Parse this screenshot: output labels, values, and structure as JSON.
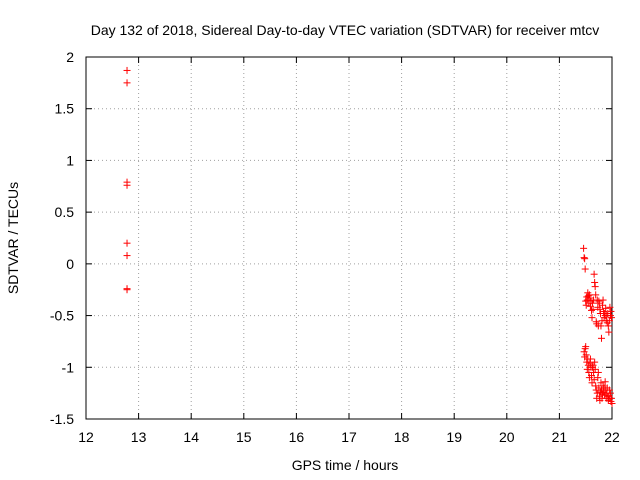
{
  "chart_data": {
    "type": "scatter",
    "title": "Day 132 of 2018, Sidereal Day-to-day VTEC variation (SDTVAR) for receiver mtcv",
    "xlabel": "GPS time / hours",
    "ylabel": "SDTVAR / TECUs",
    "xlim": [
      12,
      22
    ],
    "ylim": [
      -1.5,
      2
    ],
    "xticks": [
      "12",
      "13",
      "14",
      "15",
      "16",
      "17",
      "18",
      "19",
      "20",
      "21",
      "22"
    ],
    "yticks": [
      "-1.5",
      "-1",
      "-0.5",
      "0",
      "0.5",
      "1",
      "1.5",
      "2"
    ],
    "grid": true,
    "marker": "+",
    "color": "#ff0000",
    "series": [
      {
        "x": [
          12.78,
          12.78,
          12.78,
          12.78,
          12.78,
          12.78,
          12.78,
          12.78,
          21.46,
          21.47,
          21.48,
          21.49,
          21.5,
          21.51,
          21.52,
          21.53,
          21.54,
          21.55,
          21.56,
          21.57,
          21.58,
          21.59,
          21.6,
          21.61,
          21.62,
          21.63,
          21.64,
          21.65,
          21.66,
          21.67,
          21.68,
          21.69,
          21.7,
          21.71,
          21.72,
          21.73,
          21.74,
          21.75,
          21.76,
          21.77,
          21.78,
          21.79,
          21.8,
          21.81,
          21.82,
          21.83,
          21.84,
          21.85,
          21.86,
          21.87,
          21.88,
          21.89,
          21.9,
          21.91,
          21.92,
          21.93,
          21.94,
          21.95,
          21.96,
          21.97,
          21.98,
          21.99,
          21.47,
          21.48,
          21.49,
          21.5,
          21.51,
          21.52,
          21.53,
          21.54,
          21.55,
          21.56,
          21.57,
          21.58,
          21.59,
          21.6,
          21.61,
          21.62,
          21.63,
          21.64,
          21.65,
          21.66,
          21.67,
          21.68,
          21.69,
          21.7,
          21.71,
          21.72,
          21.73,
          21.74,
          21.75,
          21.76,
          21.77,
          21.78,
          21.79,
          21.8,
          21.81,
          21.82,
          21.83,
          21.84,
          21.85,
          21.86,
          21.87,
          21.88,
          21.89,
          21.9,
          21.91,
          21.92,
          21.93,
          21.94,
          21.95,
          21.96,
          21.97,
          21.98,
          21.99,
          22.0
        ],
        "y": [
          1.87,
          1.75,
          0.79,
          0.76,
          0.2,
          0.08,
          -0.24,
          -0.25,
          0.15,
          0.06,
          0.05,
          -0.05,
          -0.36,
          -0.4,
          -0.32,
          -0.35,
          -0.28,
          -0.31,
          -0.38,
          -0.3,
          -0.33,
          -0.41,
          -0.36,
          -0.45,
          -0.52,
          -0.38,
          -0.44,
          -0.35,
          -0.1,
          -0.18,
          -0.22,
          -0.3,
          -0.56,
          -0.58,
          -0.35,
          -0.42,
          -0.6,
          -0.36,
          -0.38,
          -0.44,
          -0.48,
          -0.6,
          -0.72,
          -0.55,
          -0.4,
          -0.35,
          -0.46,
          -0.52,
          -0.48,
          -0.5,
          -0.43,
          -0.55,
          -0.5,
          -0.57,
          -0.48,
          -0.6,
          -0.66,
          -0.55,
          -0.42,
          -0.5,
          -0.46,
          -0.52,
          -0.85,
          -0.9,
          -0.82,
          -0.8,
          -0.88,
          -0.95,
          -1.02,
          -0.92,
          -0.98,
          -1.05,
          -1.1,
          -0.96,
          -0.92,
          -1.0,
          -1.08,
          -1.15,
          -1.0,
          -0.98,
          -1.05,
          -1.12,
          -0.95,
          -1.02,
          -1.18,
          -1.22,
          -1.3,
          -1.25,
          -1.1,
          -1.05,
          -1.2,
          -1.28,
          -1.32,
          -1.24,
          -1.15,
          -1.22,
          -1.3,
          -1.26,
          -1.18,
          -1.24,
          -1.2,
          -1.27,
          -1.14,
          -1.22,
          -1.3,
          -1.25,
          -1.2,
          -1.28,
          -1.32,
          -1.28,
          -1.22,
          -1.3,
          -1.25,
          -1.33,
          -1.3,
          -1.35
        ]
      }
    ]
  }
}
